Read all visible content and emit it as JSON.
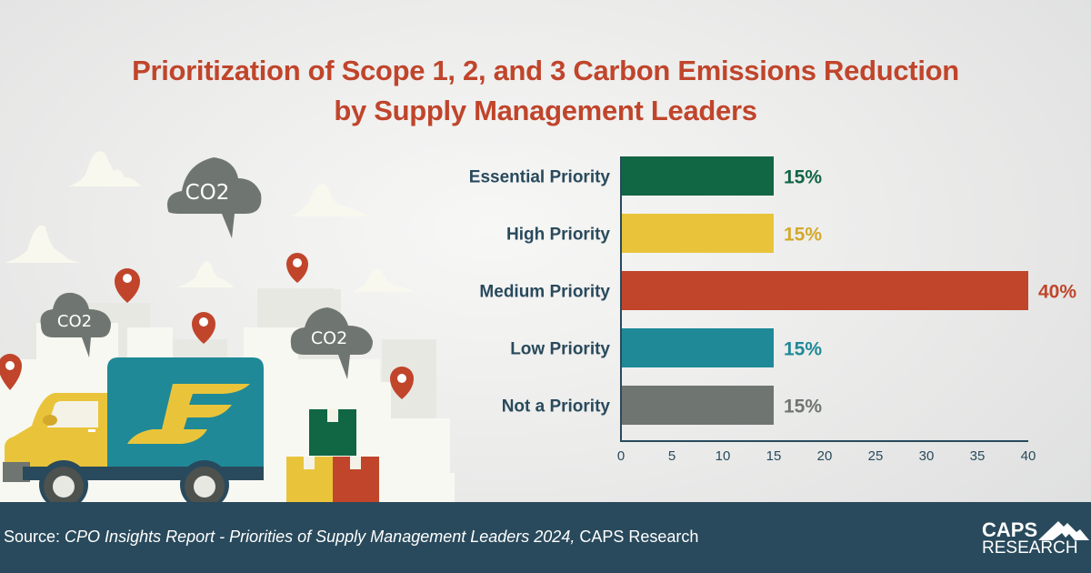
{
  "title": {
    "line1": "Prioritization of Scope 1, 2, and 3 Carbon Emissions Reduction",
    "line2": "by Supply Management Leaders"
  },
  "illustration": {
    "cloud_labels": [
      "CO2",
      "CO2",
      "CO2"
    ],
    "colors": {
      "truck_box": "#1f8997",
      "truck_cab": "#e9c43b",
      "pin": "#c0452b",
      "cloud": "#6f7671",
      "box_green": "#116644",
      "box_red": "#c0452b",
      "box_yellow": "#e9c43b"
    }
  },
  "chart_data": {
    "type": "bar",
    "orientation": "horizontal",
    "title": "Prioritization of Scope 1, 2, and 3 Carbon Emissions Reduction by Supply Management Leaders",
    "xlabel": "",
    "ylabel": "",
    "categories": [
      "Essential Priority",
      "High Priority",
      "Medium Priority",
      "Low Priority",
      "Not a Priority"
    ],
    "values": [
      15,
      15,
      40,
      15,
      15
    ],
    "value_labels": [
      "15%",
      "15%",
      "40%",
      "15%",
      "15%"
    ],
    "colors": [
      "#116644",
      "#e9c43b",
      "#c0452b",
      "#1f8997",
      "#6f7571"
    ],
    "label_colors": [
      "#116644",
      "#d4a92a",
      "#c0452b",
      "#1f8997",
      "#6f7571"
    ],
    "xlim": [
      0,
      40
    ],
    "xticks": [
      0,
      5,
      10,
      15,
      20,
      25,
      30,
      35,
      40
    ],
    "xtick_labels": [
      "0",
      "5",
      "10",
      "15",
      "20",
      "25",
      "30",
      "35",
      "40"
    ],
    "grid": false,
    "legend": "none"
  },
  "footer": {
    "source_prefix": "Source: ",
    "source_italic": "CPO Insights Report - Priorities of Supply Management Leaders 2024,",
    "source_suffix": " CAPS Research",
    "logo_line1": "CAPS",
    "logo_line2": "RESEARCH"
  }
}
